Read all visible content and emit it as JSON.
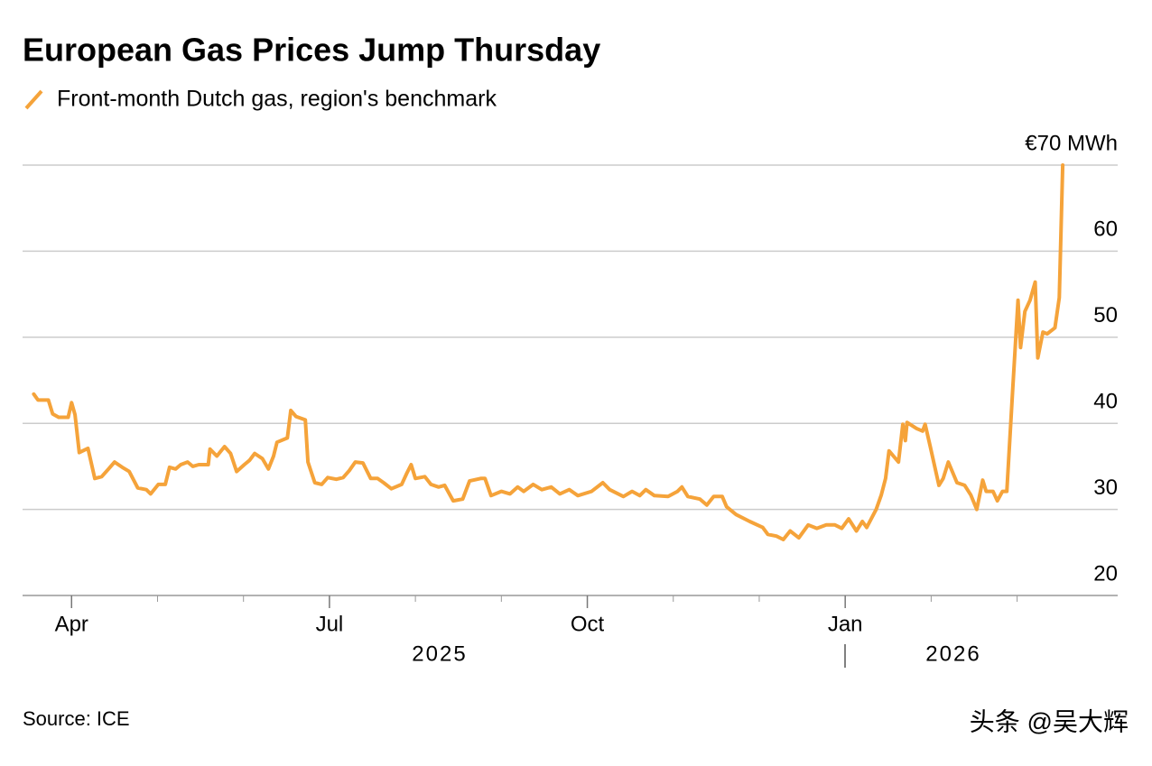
{
  "chart_data": {
    "type": "line",
    "title": "European Gas Prices Jump Thursday",
    "source": "Source: ICE",
    "watermark": "头条 @吴大辉",
    "x_group_labels": [
      "2025",
      "2026"
    ],
    "xlim": [
      2.43,
      15.17
    ],
    "xticks": [
      {
        "value": 3,
        "label": "Apr"
      },
      {
        "value": 6,
        "label": "Jul"
      },
      {
        "value": 9,
        "label": "Oct"
      },
      {
        "value": 12,
        "label": "Jan"
      }
    ],
    "xminorticks": [
      4,
      5,
      7,
      8,
      10,
      11,
      13,
      14
    ],
    "ylim": [
      20,
      70
    ],
    "yticks": [
      20,
      30,
      40,
      50,
      60,
      {
        "value": 70,
        "label": "€70 MWh"
      }
    ],
    "grid": true,
    "x": [
      2.56,
      2.61,
      2.73,
      2.78,
      2.85,
      2.96,
      3.0,
      3.04,
      3.09,
      3.19,
      3.27,
      3.35,
      3.43,
      3.5,
      3.59,
      3.67,
      3.77,
      3.87,
      3.92,
      4.01,
      4.09,
      4.14,
      4.21,
      4.27,
      4.35,
      4.41,
      4.48,
      4.59,
      4.61,
      4.69,
      4.78,
      4.85,
      4.92,
      5.01,
      5.07,
      5.13,
      5.22,
      5.29,
      5.35,
      5.39,
      5.51,
      5.55,
      5.61,
      5.72,
      5.75,
      5.83,
      5.91,
      5.98,
      6.08,
      6.16,
      6.23,
      6.3,
      6.39,
      6.48,
      6.56,
      6.63,
      6.72,
      6.84,
      6.9,
      6.95,
      7.0,
      7.11,
      7.18,
      7.27,
      7.34,
      7.44,
      7.55,
      7.63,
      7.76,
      7.81,
      7.88,
      8.0,
      8.1,
      8.19,
      8.26,
      8.37,
      8.47,
      8.58,
      8.68,
      8.79,
      8.89,
      9.05,
      9.18,
      9.26,
      9.42,
      9.52,
      9.61,
      9.68,
      9.78,
      9.94,
      10.05,
      10.1,
      10.17,
      10.31,
      10.39,
      10.47,
      10.57,
      10.62,
      10.73,
      10.89,
      11.04,
      11.1,
      11.2,
      11.28,
      11.36,
      11.46,
      11.57,
      11.67,
      11.78,
      11.88,
      11.96,
      12.04,
      12.13,
      12.2,
      12.25,
      12.36,
      12.42,
      12.47,
      12.51,
      12.62,
      12.67,
      12.7,
      12.72,
      12.83,
      12.9,
      12.93,
      12.99,
      13.09,
      13.14,
      13.2,
      13.3,
      13.39,
      13.46,
      13.53,
      13.6,
      13.64,
      13.72,
      13.77,
      13.83,
      13.88,
      13.95,
      14.01,
      14.04,
      14.09,
      14.15,
      14.21,
      14.24,
      14.3,
      14.35,
      14.44,
      14.49,
      14.53
    ],
    "series": [
      {
        "name": "Front-month Dutch gas, region's benchmark",
        "color": "#f5a33a",
        "values": [
          43.4,
          42.7,
          42.7,
          41.1,
          40.7,
          40.7,
          42.4,
          41.0,
          36.6,
          37.1,
          33.6,
          33.8,
          34.7,
          35.5,
          34.9,
          34.4,
          32.5,
          32.3,
          31.8,
          32.9,
          32.9,
          34.9,
          34.7,
          35.2,
          35.5,
          35.0,
          35.2,
          35.2,
          37.0,
          36.2,
          37.3,
          36.5,
          34.4,
          35.2,
          35.7,
          36.5,
          35.9,
          34.7,
          36.2,
          37.8,
          38.3,
          41.5,
          40.8,
          40.4,
          35.5,
          33.1,
          32.9,
          33.7,
          33.5,
          33.7,
          34.5,
          35.5,
          35.4,
          33.6,
          33.6,
          33.1,
          32.4,
          32.9,
          34.2,
          35.2,
          33.6,
          33.8,
          32.9,
          32.6,
          32.8,
          31.0,
          31.2,
          33.3,
          33.6,
          33.6,
          31.6,
          32.1,
          31.8,
          32.6,
          32.1,
          32.9,
          32.3,
          32.6,
          31.8,
          32.3,
          31.6,
          32.1,
          33.1,
          32.3,
          31.5,
          32.1,
          31.6,
          32.3,
          31.6,
          31.5,
          32.1,
          32.6,
          31.5,
          31.2,
          30.5,
          31.5,
          31.5,
          30.3,
          29.4,
          28.6,
          27.9,
          27.1,
          26.9,
          26.5,
          27.5,
          26.7,
          28.2,
          27.8,
          28.2,
          28.2,
          27.8,
          28.9,
          27.5,
          28.6,
          27.9,
          30.0,
          31.7,
          33.6,
          36.8,
          35.5,
          39.9,
          38.0,
          40.1,
          39.4,
          39.1,
          39.9,
          37.3,
          32.8,
          33.6,
          35.5,
          33.1,
          32.8,
          31.7,
          30.0,
          33.4,
          32.1,
          32.1,
          31.0,
          32.1,
          32.1,
          44.1,
          54.3,
          48.8,
          53.0,
          54.3,
          56.4,
          47.6,
          50.6,
          50.4,
          51.1,
          54.6,
          70.0
        ]
      }
    ]
  }
}
